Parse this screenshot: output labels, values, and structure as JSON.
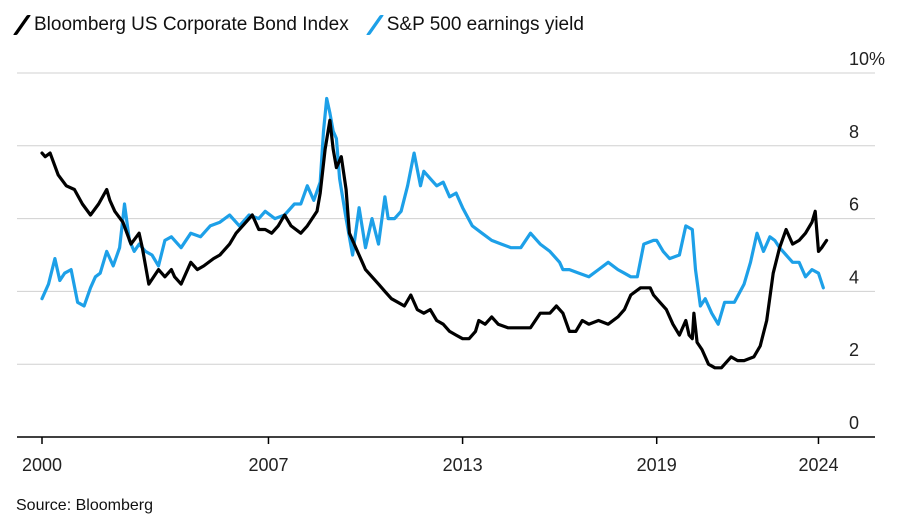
{
  "chart_data": {
    "type": "line",
    "title": "",
    "xlabel": "",
    "ylabel": "",
    "x_range": [
      2000,
      2025.5
    ],
    "ylim": [
      0,
      10
    ],
    "y_ticks": [
      0,
      2,
      4,
      6,
      8,
      10
    ],
    "y_tick_labels": [
      "0",
      "2",
      "4",
      "6",
      "8",
      "10%"
    ],
    "x_ticks": [
      2000,
      2007,
      2013,
      2019,
      2024
    ],
    "x_tick_labels": [
      "2000",
      "2007",
      "2013",
      "2019",
      "2024"
    ],
    "grid": true,
    "legend_position": "top-left",
    "series": [
      {
        "name": "Bloomberg US Corporate Bond Index",
        "color": "#000000",
        "x": [
          2000.0,
          2000.1,
          2000.25,
          2000.5,
          2000.75,
          2001.0,
          2001.25,
          2001.5,
          2001.75,
          2002.0,
          2002.1,
          2002.25,
          2002.5,
          2002.75,
          2003.0,
          2003.1,
          2003.3,
          2003.6,
          2003.8,
          2004.0,
          2004.1,
          2004.3,
          2004.6,
          2004.8,
          2005.0,
          2005.3,
          2005.5,
          2005.8,
          2006.0,
          2006.2,
          2006.5,
          2006.7,
          2006.9,
          2007.1,
          2007.3,
          2007.5,
          2007.7,
          2008.0,
          2008.2,
          2008.5,
          2008.6,
          2008.75,
          2008.9,
          2009.0,
          2009.1,
          2009.25,
          2009.4,
          2009.5,
          2009.7,
          2009.9,
          2010.0,
          2010.2,
          2010.4,
          2010.6,
          2010.8,
          2011.0,
          2011.2,
          2011.4,
          2011.6,
          2011.8,
          2012.0,
          2012.2,
          2012.4,
          2012.6,
          2012.8,
          2013.0,
          2013.2,
          2013.4,
          2013.5,
          2013.7,
          2013.9,
          2014.1,
          2014.4,
          2014.6,
          2014.9,
          2015.1,
          2015.4,
          2015.7,
          2015.9,
          2016.1,
          2016.3,
          2016.5,
          2016.7,
          2016.9,
          2017.2,
          2017.5,
          2017.8,
          2018.0,
          2018.2,
          2018.5,
          2018.8,
          2018.9,
          2019.1,
          2019.3,
          2019.5,
          2019.7,
          2019.9,
          2020.0,
          2020.1,
          2020.15,
          2020.25,
          2020.4,
          2020.6,
          2020.8,
          2021.0,
          2021.3,
          2021.5,
          2021.7,
          2022.0,
          2022.2,
          2022.4,
          2022.6,
          2022.8,
          2023.0,
          2023.2,
          2023.4,
          2023.6,
          2023.8,
          2023.9,
          2024.0,
          2024.1,
          2024.25
        ],
        "values": [
          7.8,
          7.7,
          7.8,
          7.2,
          6.9,
          6.8,
          6.4,
          6.1,
          6.4,
          6.8,
          6.5,
          6.2,
          5.9,
          5.3,
          5.6,
          5.2,
          4.2,
          4.6,
          4.4,
          4.6,
          4.4,
          4.2,
          4.8,
          4.6,
          4.7,
          4.9,
          5.0,
          5.3,
          5.6,
          5.8,
          6.1,
          5.7,
          5.7,
          5.6,
          5.8,
          6.1,
          5.8,
          5.6,
          5.8,
          6.2,
          6.7,
          7.9,
          8.7,
          7.9,
          7.4,
          7.7,
          6.8,
          5.6,
          5.2,
          4.8,
          4.6,
          4.4,
          4.2,
          4.0,
          3.8,
          3.7,
          3.6,
          3.9,
          3.5,
          3.4,
          3.5,
          3.2,
          3.1,
          2.9,
          2.8,
          2.7,
          2.7,
          2.9,
          3.2,
          3.1,
          3.3,
          3.1,
          3.0,
          3.0,
          3.0,
          3.0,
          3.4,
          3.4,
          3.6,
          3.4,
          2.9,
          2.9,
          3.2,
          3.1,
          3.2,
          3.1,
          3.3,
          3.5,
          3.9,
          4.1,
          4.1,
          3.9,
          3.7,
          3.5,
          3.1,
          2.8,
          3.2,
          2.8,
          2.7,
          3.4,
          2.6,
          2.4,
          2.0,
          1.9,
          1.9,
          2.2,
          2.1,
          2.1,
          2.2,
          2.5,
          3.2,
          4.5,
          5.2,
          5.7,
          5.3,
          5.4,
          5.6,
          5.9,
          6.2,
          5.1,
          5.2,
          5.4
        ]
      },
      {
        "name": "S&P 500 earnings yield",
        "color": "#1da0e8",
        "x": [
          2000.0,
          2000.2,
          2000.4,
          2000.55,
          2000.7,
          2000.9,
          2001.1,
          2001.3,
          2001.5,
          2001.65,
          2001.8,
          2002.0,
          2002.2,
          2002.4,
          2002.55,
          2002.7,
          2002.85,
          2003.0,
          2003.2,
          2003.4,
          2003.6,
          2003.8,
          2004.0,
          2004.3,
          2004.6,
          2004.9,
          2005.2,
          2005.5,
          2005.8,
          2006.1,
          2006.4,
          2006.7,
          2006.9,
          2007.2,
          2007.5,
          2007.8,
          2008.0,
          2008.2,
          2008.4,
          2008.6,
          2008.7,
          2008.8,
          2008.9,
          2009.0,
          2009.1,
          2009.2,
          2009.4,
          2009.6,
          2009.8,
          2010.0,
          2010.2,
          2010.4,
          2010.6,
          2010.7,
          2010.9,
          2011.1,
          2011.3,
          2011.5,
          2011.7,
          2011.8,
          2012.0,
          2012.2,
          2012.4,
          2012.6,
          2012.8,
          2013.0,
          2013.3,
          2013.6,
          2013.9,
          2014.2,
          2014.5,
          2014.8,
          2015.1,
          2015.4,
          2015.7,
          2016.0,
          2016.1,
          2016.3,
          2016.6,
          2016.9,
          2017.2,
          2017.5,
          2017.8,
          2018.0,
          2018.2,
          2018.4,
          2018.6,
          2018.9,
          2019.0,
          2019.2,
          2019.4,
          2019.7,
          2019.9,
          2020.1,
          2020.2,
          2020.35,
          2020.5,
          2020.7,
          2020.9,
          2021.1,
          2021.4,
          2021.7,
          2021.9,
          2022.1,
          2022.3,
          2022.5,
          2022.65,
          2022.8,
          2023.0,
          2023.2,
          2023.4,
          2023.6,
          2023.8,
          2024.0,
          2024.15
        ],
        "values": [
          3.8,
          4.2,
          4.9,
          4.3,
          4.5,
          4.6,
          3.7,
          3.6,
          4.1,
          4.4,
          4.5,
          5.1,
          4.7,
          5.2,
          6.4,
          5.4,
          5.1,
          5.3,
          5.1,
          5.0,
          4.7,
          5.4,
          5.5,
          5.2,
          5.6,
          5.5,
          5.8,
          5.9,
          6.1,
          5.8,
          6.1,
          6.0,
          6.2,
          6.0,
          6.1,
          6.4,
          6.4,
          6.9,
          6.5,
          7.0,
          8.4,
          9.3,
          8.9,
          8.4,
          8.2,
          7.1,
          6.0,
          5.0,
          6.3,
          5.2,
          6.0,
          5.3,
          6.6,
          6.0,
          6.0,
          6.2,
          6.9,
          7.8,
          6.9,
          7.3,
          7.1,
          6.9,
          7.0,
          6.6,
          6.7,
          6.3,
          5.8,
          5.6,
          5.4,
          5.3,
          5.2,
          5.2,
          5.6,
          5.3,
          5.1,
          4.8,
          4.6,
          4.6,
          4.5,
          4.4,
          4.6,
          4.8,
          4.6,
          4.5,
          4.4,
          4.4,
          5.3,
          5.4,
          5.4,
          5.1,
          4.9,
          5.0,
          5.8,
          5.7,
          4.6,
          3.6,
          3.8,
          3.4,
          3.1,
          3.7,
          3.7,
          4.2,
          4.8,
          5.6,
          5.1,
          5.5,
          5.4,
          5.2,
          5.0,
          4.8,
          4.8,
          4.4,
          4.6,
          4.5,
          4.1
        ]
      }
    ]
  },
  "source": "Source: Bloomberg"
}
